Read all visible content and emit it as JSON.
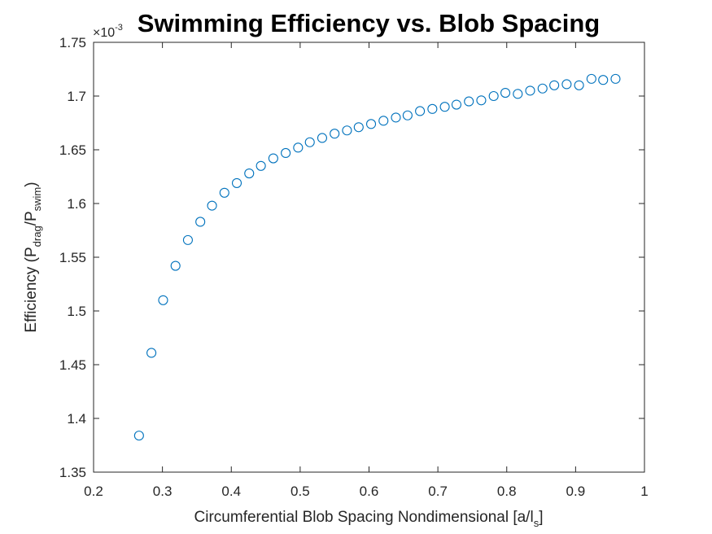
{
  "chart_data": {
    "type": "scatter",
    "title": "Swimming Efficiency vs. Blob Spacing",
    "xlabel": {
      "main": "Circumferential Blob Spacing Nondimensional [a/l",
      "sub": "s",
      "close": "]"
    },
    "ylabel": {
      "prefix": "Efficiency (P",
      "sub1": "drag",
      "mid": "/P",
      "sub2": "swim",
      "close": ")"
    },
    "y_exponent": {
      "base": "×10",
      "power": "-3"
    },
    "xlim": [
      0.2,
      1.0
    ],
    "ylim": [
      1.35,
      1.75
    ],
    "xticks": [
      "0.2",
      "0.3",
      "0.4",
      "0.5",
      "0.6",
      "0.7",
      "0.8",
      "0.9",
      "1"
    ],
    "yticks": [
      "1.35",
      "1.4",
      "1.45",
      "1.5",
      "1.55",
      "1.6",
      "1.65",
      "1.7",
      "1.75"
    ],
    "grid": false,
    "marker": "open-circle",
    "marker_color": "#0072BD",
    "axis_color": "#262626",
    "points": [
      {
        "x": 0.266,
        "y": 1.384
      },
      {
        "x": 0.284,
        "y": 1.461
      },
      {
        "x": 0.301,
        "y": 1.51
      },
      {
        "x": 0.319,
        "y": 1.542
      },
      {
        "x": 0.337,
        "y": 1.566
      },
      {
        "x": 0.355,
        "y": 1.583
      },
      {
        "x": 0.372,
        "y": 1.598
      },
      {
        "x": 0.39,
        "y": 1.61
      },
      {
        "x": 0.408,
        "y": 1.619
      },
      {
        "x": 0.426,
        "y": 1.628
      },
      {
        "x": 0.443,
        "y": 1.635
      },
      {
        "x": 0.461,
        "y": 1.642
      },
      {
        "x": 0.479,
        "y": 1.647
      },
      {
        "x": 0.497,
        "y": 1.652
      },
      {
        "x": 0.514,
        "y": 1.657
      },
      {
        "x": 0.532,
        "y": 1.661
      },
      {
        "x": 0.55,
        "y": 1.665
      },
      {
        "x": 0.568,
        "y": 1.668
      },
      {
        "x": 0.585,
        "y": 1.671
      },
      {
        "x": 0.603,
        "y": 1.674
      },
      {
        "x": 0.621,
        "y": 1.677
      },
      {
        "x": 0.639,
        "y": 1.68
      },
      {
        "x": 0.656,
        "y": 1.682
      },
      {
        "x": 0.674,
        "y": 1.686
      },
      {
        "x": 0.692,
        "y": 1.688
      },
      {
        "x": 0.71,
        "y": 1.69
      },
      {
        "x": 0.727,
        "y": 1.692
      },
      {
        "x": 0.745,
        "y": 1.695
      },
      {
        "x": 0.763,
        "y": 1.696
      },
      {
        "x": 0.781,
        "y": 1.7
      },
      {
        "x": 0.798,
        "y": 1.703
      },
      {
        "x": 0.816,
        "y": 1.702
      },
      {
        "x": 0.834,
        "y": 1.705
      },
      {
        "x": 0.852,
        "y": 1.707
      },
      {
        "x": 0.869,
        "y": 1.71
      },
      {
        "x": 0.887,
        "y": 1.711
      },
      {
        "x": 0.905,
        "y": 1.71
      },
      {
        "x": 0.923,
        "y": 1.716
      },
      {
        "x": 0.94,
        "y": 1.715
      },
      {
        "x": 0.958,
        "y": 1.716
      }
    ]
  }
}
